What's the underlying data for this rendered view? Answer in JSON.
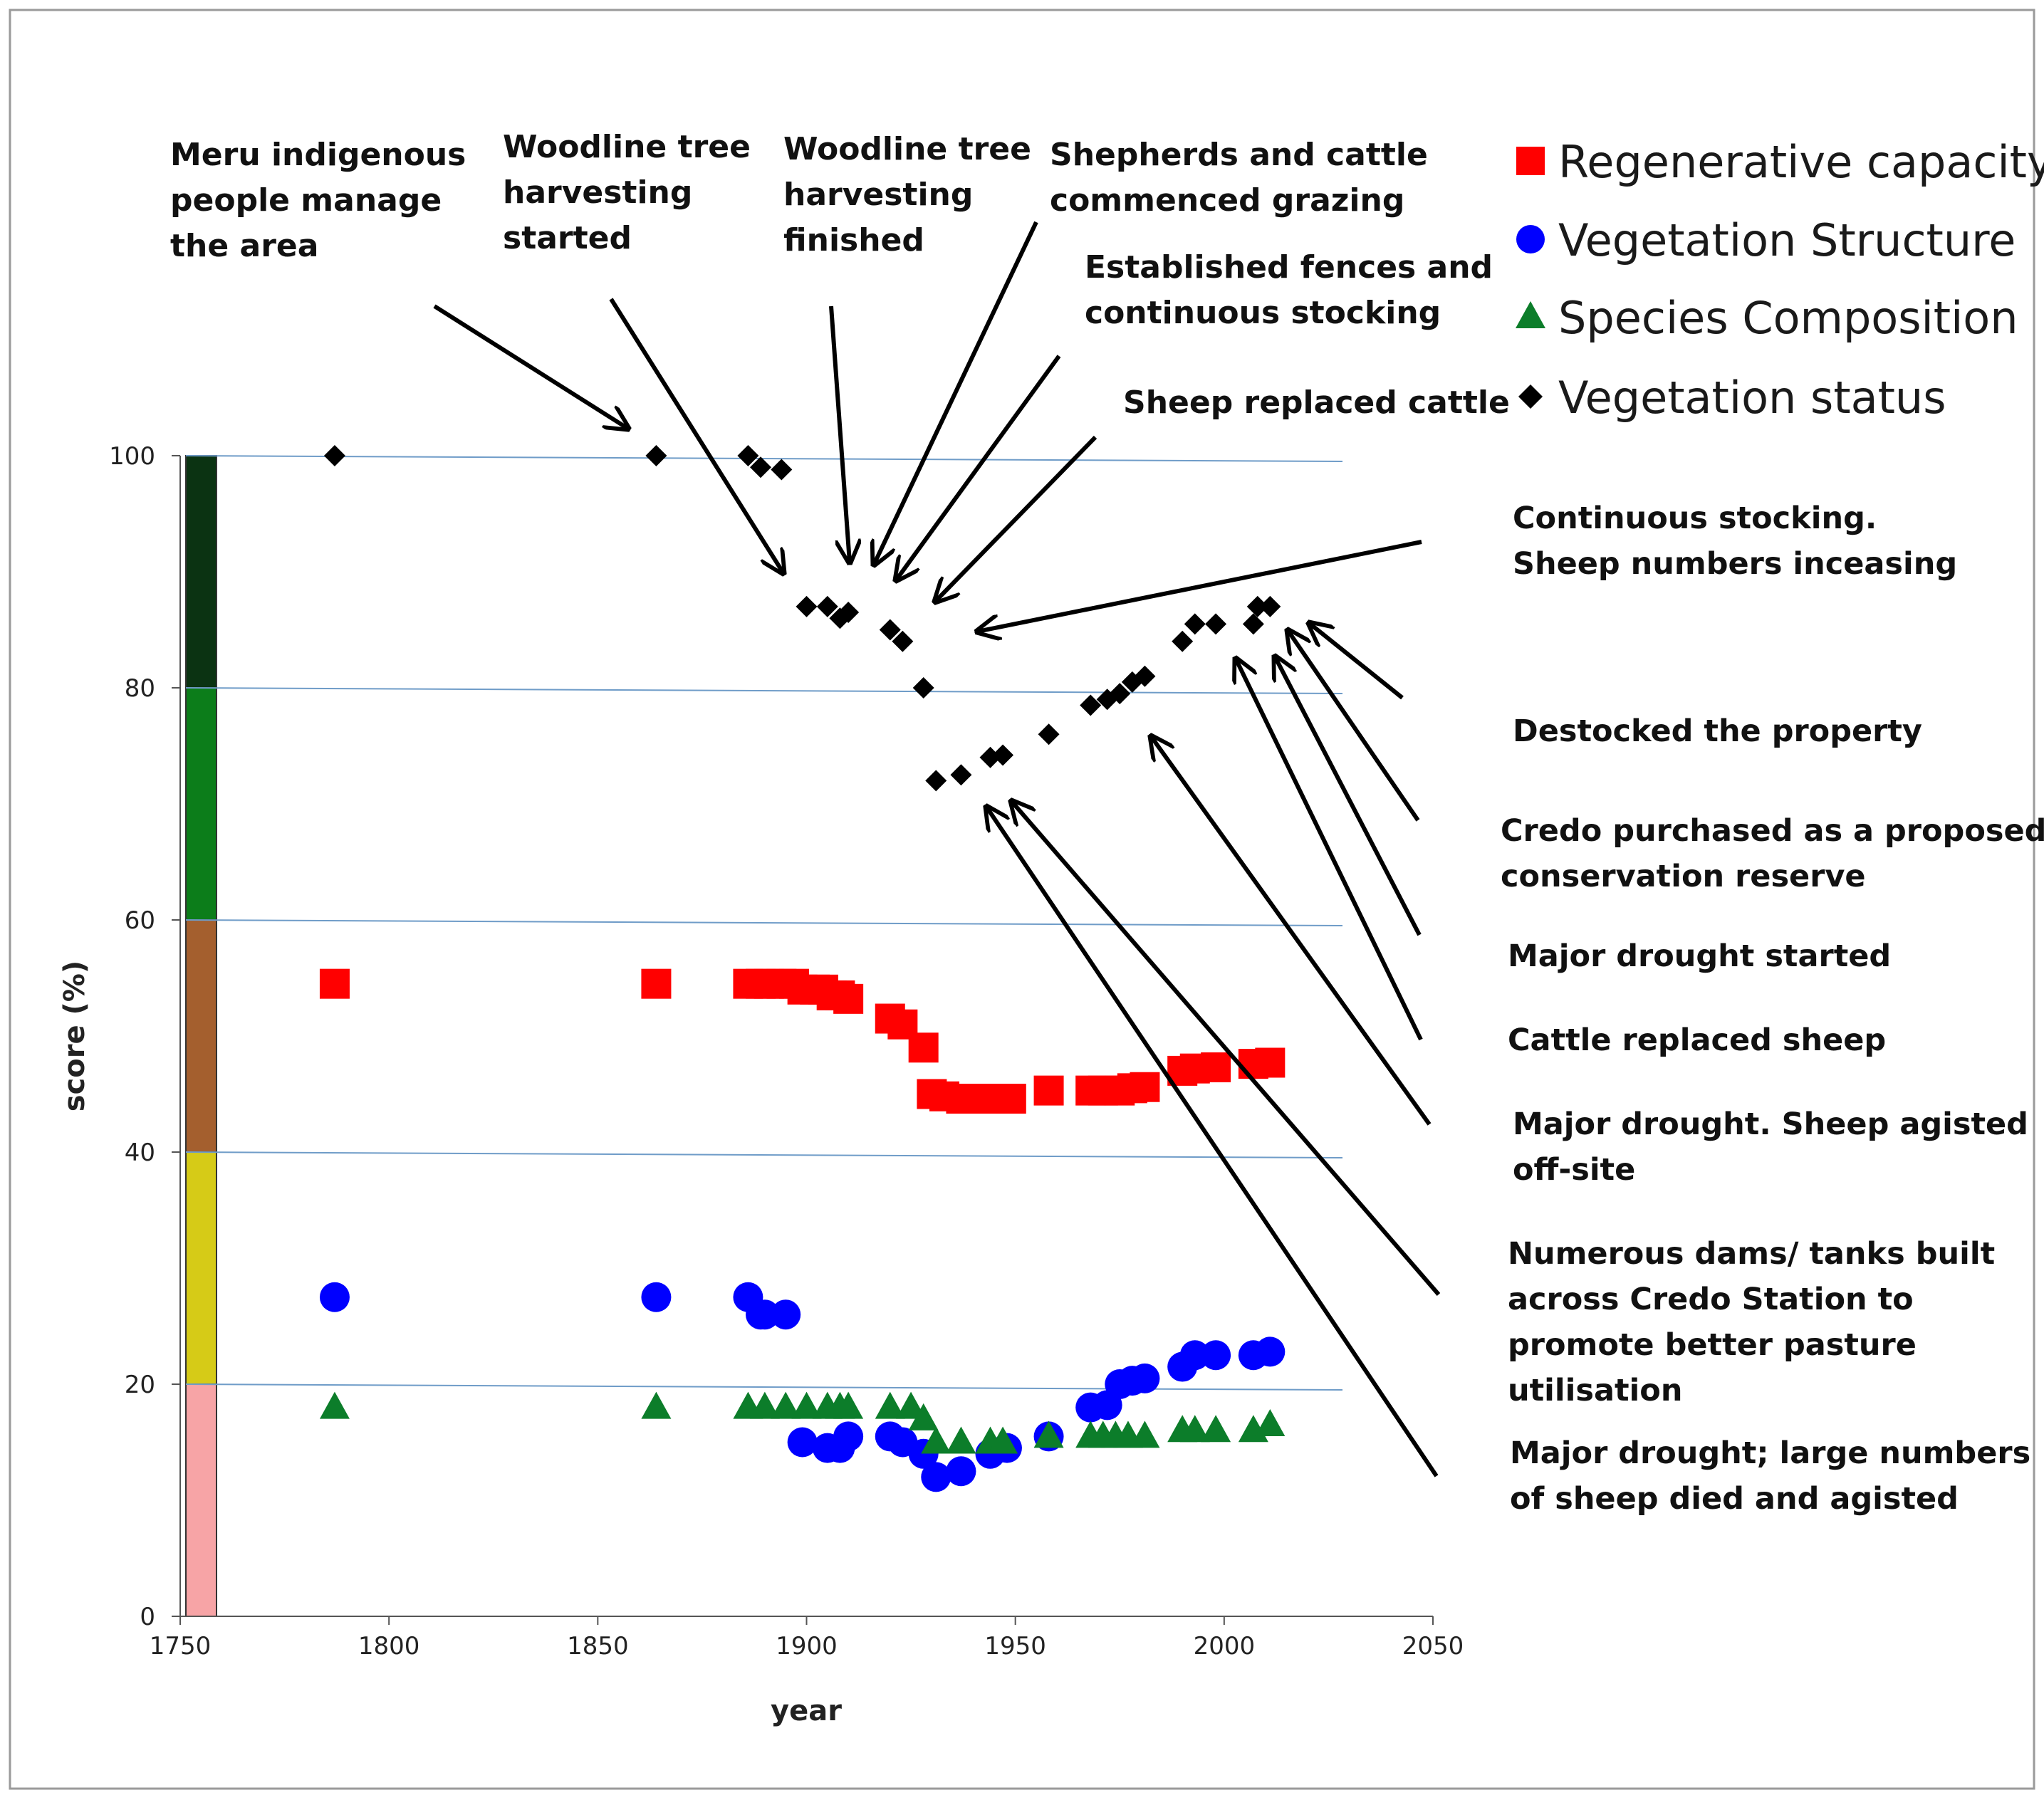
{
  "chart_data": {
    "type": "scatter",
    "title": "",
    "xlabel": "year",
    "ylabel": "score (%)",
    "xlim": [
      1750,
      2050
    ],
    "ylim": [
      0,
      100
    ],
    "x_ticks": [
      "1750",
      "1800",
      "1850",
      "1900",
      "1950",
      "2000",
      "2050"
    ],
    "y_ticks": [
      "0",
      "20",
      "40",
      "60",
      "80",
      "100"
    ],
    "gridlines": [
      20,
      40,
      60,
      80,
      100
    ],
    "condition_bands": [
      {
        "from": 0,
        "to": 20,
        "color": "#f7a4a6"
      },
      {
        "from": 20,
        "to": 40,
        "color": "#d6cb17"
      },
      {
        "from": 40,
        "to": 60,
        "color": "#a45f2e"
      },
      {
        "from": 60,
        "to": 80,
        "color": "#0c7d1a"
      },
      {
        "from": 80,
        "to": 100,
        "color": "#0b3312"
      }
    ],
    "series": [
      {
        "name": "Regenerative capacity",
        "marker": "square",
        "color": "#ff0000",
        "points": [
          [
            1787,
            54.5
          ],
          [
            1864,
            54.5
          ],
          [
            1886,
            54.5
          ],
          [
            1889,
            54.5
          ],
          [
            1891,
            54.5
          ],
          [
            1894,
            54.5
          ],
          [
            1897,
            54.5
          ],
          [
            1899,
            54
          ],
          [
            1902,
            54
          ],
          [
            1904,
            54
          ],
          [
            1906,
            53.5
          ],
          [
            1908,
            53.5
          ],
          [
            1910,
            53.2
          ],
          [
            1920,
            51.5
          ],
          [
            1923,
            51
          ],
          [
            1928,
            49
          ],
          [
            1930,
            45
          ],
          [
            1933,
            44.8
          ],
          [
            1937,
            44.6
          ],
          [
            1944,
            44.6
          ],
          [
            1949,
            44.6
          ],
          [
            1958,
            45.3
          ],
          [
            1968,
            45.3
          ],
          [
            1971,
            45.3
          ],
          [
            1975,
            45.3
          ],
          [
            1978,
            45.5
          ],
          [
            1981,
            45.6
          ],
          [
            1990,
            47
          ],
          [
            1993,
            47.2
          ],
          [
            1998,
            47.3
          ],
          [
            2007,
            47.6
          ],
          [
            2011,
            47.7
          ]
        ]
      },
      {
        "name": "Vegetation Structure",
        "marker": "circle",
        "color": "#0000ff",
        "points": [
          [
            1787,
            27.5
          ],
          [
            1864,
            27.5
          ],
          [
            1886,
            27.5
          ],
          [
            1889,
            26
          ],
          [
            1890,
            26
          ],
          [
            1895,
            26
          ],
          [
            1899,
            15
          ],
          [
            1905,
            14.5
          ],
          [
            1908,
            14.5
          ],
          [
            1910,
            15.5
          ],
          [
            1920,
            15.5
          ],
          [
            1923,
            15
          ],
          [
            1928,
            14
          ],
          [
            1931,
            12
          ],
          [
            1937,
            12.5
          ],
          [
            1944,
            14
          ],
          [
            1948,
            14.5
          ],
          [
            1958,
            15.5
          ],
          [
            1968,
            18
          ],
          [
            1972,
            18.2
          ],
          [
            1975,
            20
          ],
          [
            1978,
            20.3
          ],
          [
            1981,
            20.5
          ],
          [
            1990,
            21.5
          ],
          [
            1993,
            22.5
          ],
          [
            1998,
            22.5
          ],
          [
            2007,
            22.5
          ],
          [
            2011,
            22.8
          ]
        ]
      },
      {
        "name": "Species Composition",
        "marker": "triangle",
        "color": "#0c7d2a",
        "points": [
          [
            1787,
            18
          ],
          [
            1864,
            18
          ],
          [
            1886,
            18
          ],
          [
            1890,
            18
          ],
          [
            1895,
            18
          ],
          [
            1900,
            18
          ],
          [
            1905,
            18
          ],
          [
            1908,
            18
          ],
          [
            1910,
            18
          ],
          [
            1920,
            18
          ],
          [
            1925,
            18
          ],
          [
            1928,
            17
          ],
          [
            1931,
            15
          ],
          [
            1937,
            15
          ],
          [
            1944,
            15
          ],
          [
            1947,
            15
          ],
          [
            1958,
            15.5
          ],
          [
            1968,
            15.5
          ],
          [
            1971,
            15.5
          ],
          [
            1974,
            15.5
          ],
          [
            1977,
            15.5
          ],
          [
            1981,
            15.5
          ],
          [
            1990,
            16
          ],
          [
            1993,
            16
          ],
          [
            1998,
            16
          ],
          [
            2007,
            16
          ],
          [
            2011,
            16.5
          ]
        ]
      },
      {
        "name": "Vegetation status",
        "marker": "diamond",
        "color": "#000000",
        "points": [
          [
            1787,
            100
          ],
          [
            1864,
            100
          ],
          [
            1886,
            100
          ],
          [
            1889,
            99
          ],
          [
            1894,
            98.8
          ],
          [
            1900,
            87
          ],
          [
            1905,
            87
          ],
          [
            1908,
            86
          ],
          [
            1910,
            86.5
          ],
          [
            1920,
            85
          ],
          [
            1923,
            84
          ],
          [
            1928,
            80
          ],
          [
            1931,
            72
          ],
          [
            1937,
            72.5
          ],
          [
            1944,
            74
          ],
          [
            1947,
            74.2
          ],
          [
            1958,
            76
          ],
          [
            1968,
            78.5
          ],
          [
            1972,
            79
          ],
          [
            1975,
            79.5
          ],
          [
            1978,
            80.5
          ],
          [
            1981,
            81
          ],
          [
            1990,
            84
          ],
          [
            1993,
            85.5
          ],
          [
            1998,
            85.5
          ],
          [
            2007,
            85.5
          ],
          [
            2008,
            87
          ],
          [
            2011,
            87
          ]
        ]
      }
    ],
    "annotations_top": [
      {
        "lines": [
          "Meru indigenous",
          "people manage",
          "the area"
        ]
      },
      {
        "lines": [
          "Woodline tree",
          "harvesting",
          "started"
        ]
      },
      {
        "lines": [
          "Woodline tree",
          "harvesting",
          "finished"
        ]
      },
      {
        "lines": [
          "Shepherds and cattle",
          "commenced grazing"
        ]
      },
      {
        "lines": [
          "Established fences and",
          "continuous stocking"
        ]
      },
      {
        "lines": [
          "Sheep replaced cattle"
        ]
      }
    ],
    "annotations_right": [
      {
        "lines": [
          "Continuous stocking.",
          "Sheep numbers inceasing"
        ]
      },
      {
        "lines": [
          "Destocked the property"
        ]
      },
      {
        "lines": [
          "Credo purchased as a proposed",
          "conservation reserve"
        ]
      },
      {
        "lines": [
          "Major drought started"
        ]
      },
      {
        "lines": [
          "Cattle replaced sheep"
        ]
      },
      {
        "lines": [
          "Major drought. Sheep agisted",
          "off-site"
        ]
      },
      {
        "lines": [
          "Numerous dams/ tanks built",
          "across Credo Station to",
          "promote better pasture",
          "utilisation"
        ]
      },
      {
        "lines": [
          "Major drought; large numbers",
          "of sheep died and agisted"
        ]
      }
    ]
  }
}
